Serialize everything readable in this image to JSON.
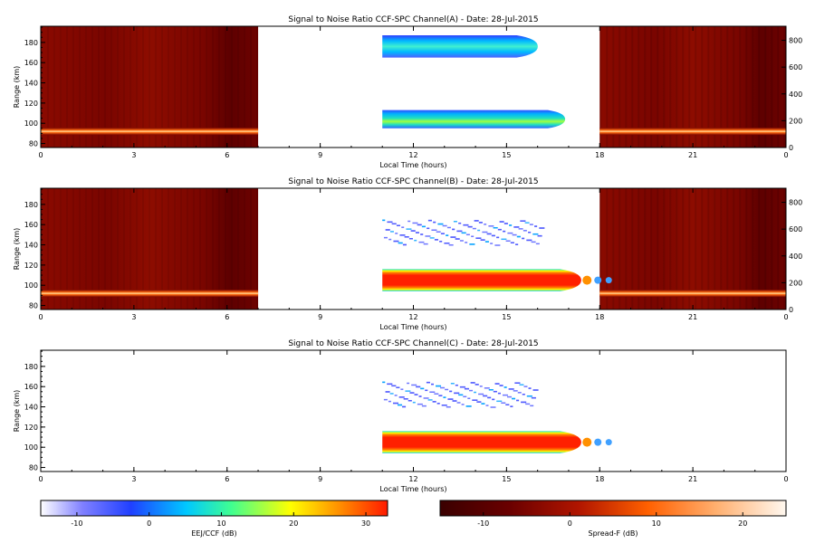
{
  "chart_data": [
    {
      "type": "heatmap",
      "title": "Signal to Noise Ratio CCF-SPC Channel(A) - Date: 28-Jul-2015",
      "xlabel": "Local Time (hours)",
      "ylabel": "Range (km)",
      "xlim": [
        0,
        24
      ],
      "ylim": [
        76,
        196
      ],
      "y2lim": [
        0,
        905
      ],
      "x_ticks": [
        "0",
        "3",
        "6",
        "9",
        "12",
        "15",
        "18",
        "21",
        "0"
      ],
      "y_ticks": [
        "80",
        "100",
        "120",
        "140",
        "160",
        "180"
      ],
      "y2_ticks": [
        "0",
        "200",
        "400",
        "600",
        "800"
      ],
      "spread_f_intervals": [
        [
          0,
          7
        ],
        [
          18,
          24
        ]
      ],
      "spread_f_layer_km": 92,
      "eej_echoes": [
        {
          "x_start": 11.0,
          "x_end": 16.8,
          "y_low": 95,
          "y_high": 113,
          "peak_db": 14
        },
        {
          "x_start": 11.0,
          "x_end": 15.9,
          "y_low": 165,
          "y_high": 187,
          "peak_db": 10
        }
      ]
    },
    {
      "type": "heatmap",
      "title": "Signal to Noise Ratio CCF-SPC Channel(B) - Date: 28-Jul-2015",
      "xlabel": "Local Time (hours)",
      "ylabel": "Range (km)",
      "xlim": [
        0,
        24
      ],
      "ylim": [
        76,
        196
      ],
      "y2lim": [
        0,
        905
      ],
      "x_ticks": [
        "0",
        "3",
        "6",
        "9",
        "12",
        "15",
        "18",
        "21",
        "0"
      ],
      "y_ticks": [
        "80",
        "100",
        "120",
        "140",
        "160",
        "180"
      ],
      "y2_ticks": [
        "0",
        "200",
        "400",
        "600",
        "800"
      ],
      "spread_f_intervals": [
        [
          0,
          7
        ],
        [
          18,
          24
        ]
      ],
      "spread_f_layer_km": 92,
      "eej_echoes": [
        {
          "x_start": 11.0,
          "x_end": 17.3,
          "y_low": 94,
          "y_high": 116,
          "peak_db": 30
        },
        {
          "x_start": 11.0,
          "x_end": 16.1,
          "y_low": 140,
          "y_high": 165,
          "peak_db": -5
        }
      ]
    },
    {
      "type": "heatmap",
      "title": "Signal to Noise Ratio CCF-SPC Channel(C) - Date: 28-Jul-2015",
      "xlabel": "Local Time (hours)",
      "ylabel": "Range (km)",
      "xlim": [
        0,
        24
      ],
      "ylim": [
        76,
        196
      ],
      "x_ticks": [
        "0",
        "3",
        "6",
        "9",
        "12",
        "15",
        "18",
        "21",
        "0"
      ],
      "y_ticks": [
        "80",
        "100",
        "120",
        "140",
        "160",
        "180"
      ],
      "eej_echoes": [
        {
          "x_start": 11.0,
          "x_end": 17.3,
          "y_low": 94,
          "y_high": 116,
          "peak_db": 30
        },
        {
          "x_start": 11.0,
          "x_end": 15.9,
          "y_low": 140,
          "y_high": 165,
          "peak_db": -5
        }
      ]
    }
  ],
  "colorbars": [
    {
      "label": "EEJ/CCF (dB)",
      "range": [
        -15,
        33
      ],
      "ticks": [
        "-10",
        "0",
        "10",
        "20",
        "30"
      ],
      "tick_values": [
        -10,
        0,
        10,
        20,
        30
      ]
    },
    {
      "label": "Spread-F (dB)",
      "range": [
        -15,
        25
      ],
      "ticks": [
        "-10",
        "0",
        "10",
        "20"
      ],
      "tick_values": [
        -10,
        0,
        10,
        20
      ]
    }
  ]
}
